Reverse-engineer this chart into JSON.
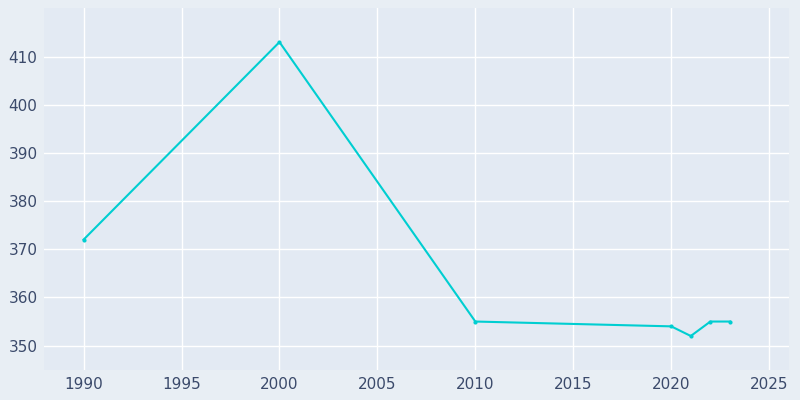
{
  "years": [
    1990,
    2000,
    2010,
    2020,
    2021,
    2022,
    2023
  ],
  "population": [
    372,
    413,
    355,
    354,
    352,
    355,
    355
  ],
  "line_color": "#00CED1",
  "marker_style": "o",
  "marker_size": 3,
  "background_color": "#E8EEF4",
  "plot_bg_color": "#E3EAF3",
  "grid_color": "#FFFFFF",
  "xlim": [
    1988,
    2026
  ],
  "ylim": [
    345,
    420
  ],
  "xticks": [
    1990,
    1995,
    2000,
    2005,
    2010,
    2015,
    2020,
    2025
  ],
  "yticks": [
    350,
    360,
    370,
    380,
    390,
    400,
    410
  ],
  "tick_color": "#3B4A6B",
  "tick_fontsize": 11
}
